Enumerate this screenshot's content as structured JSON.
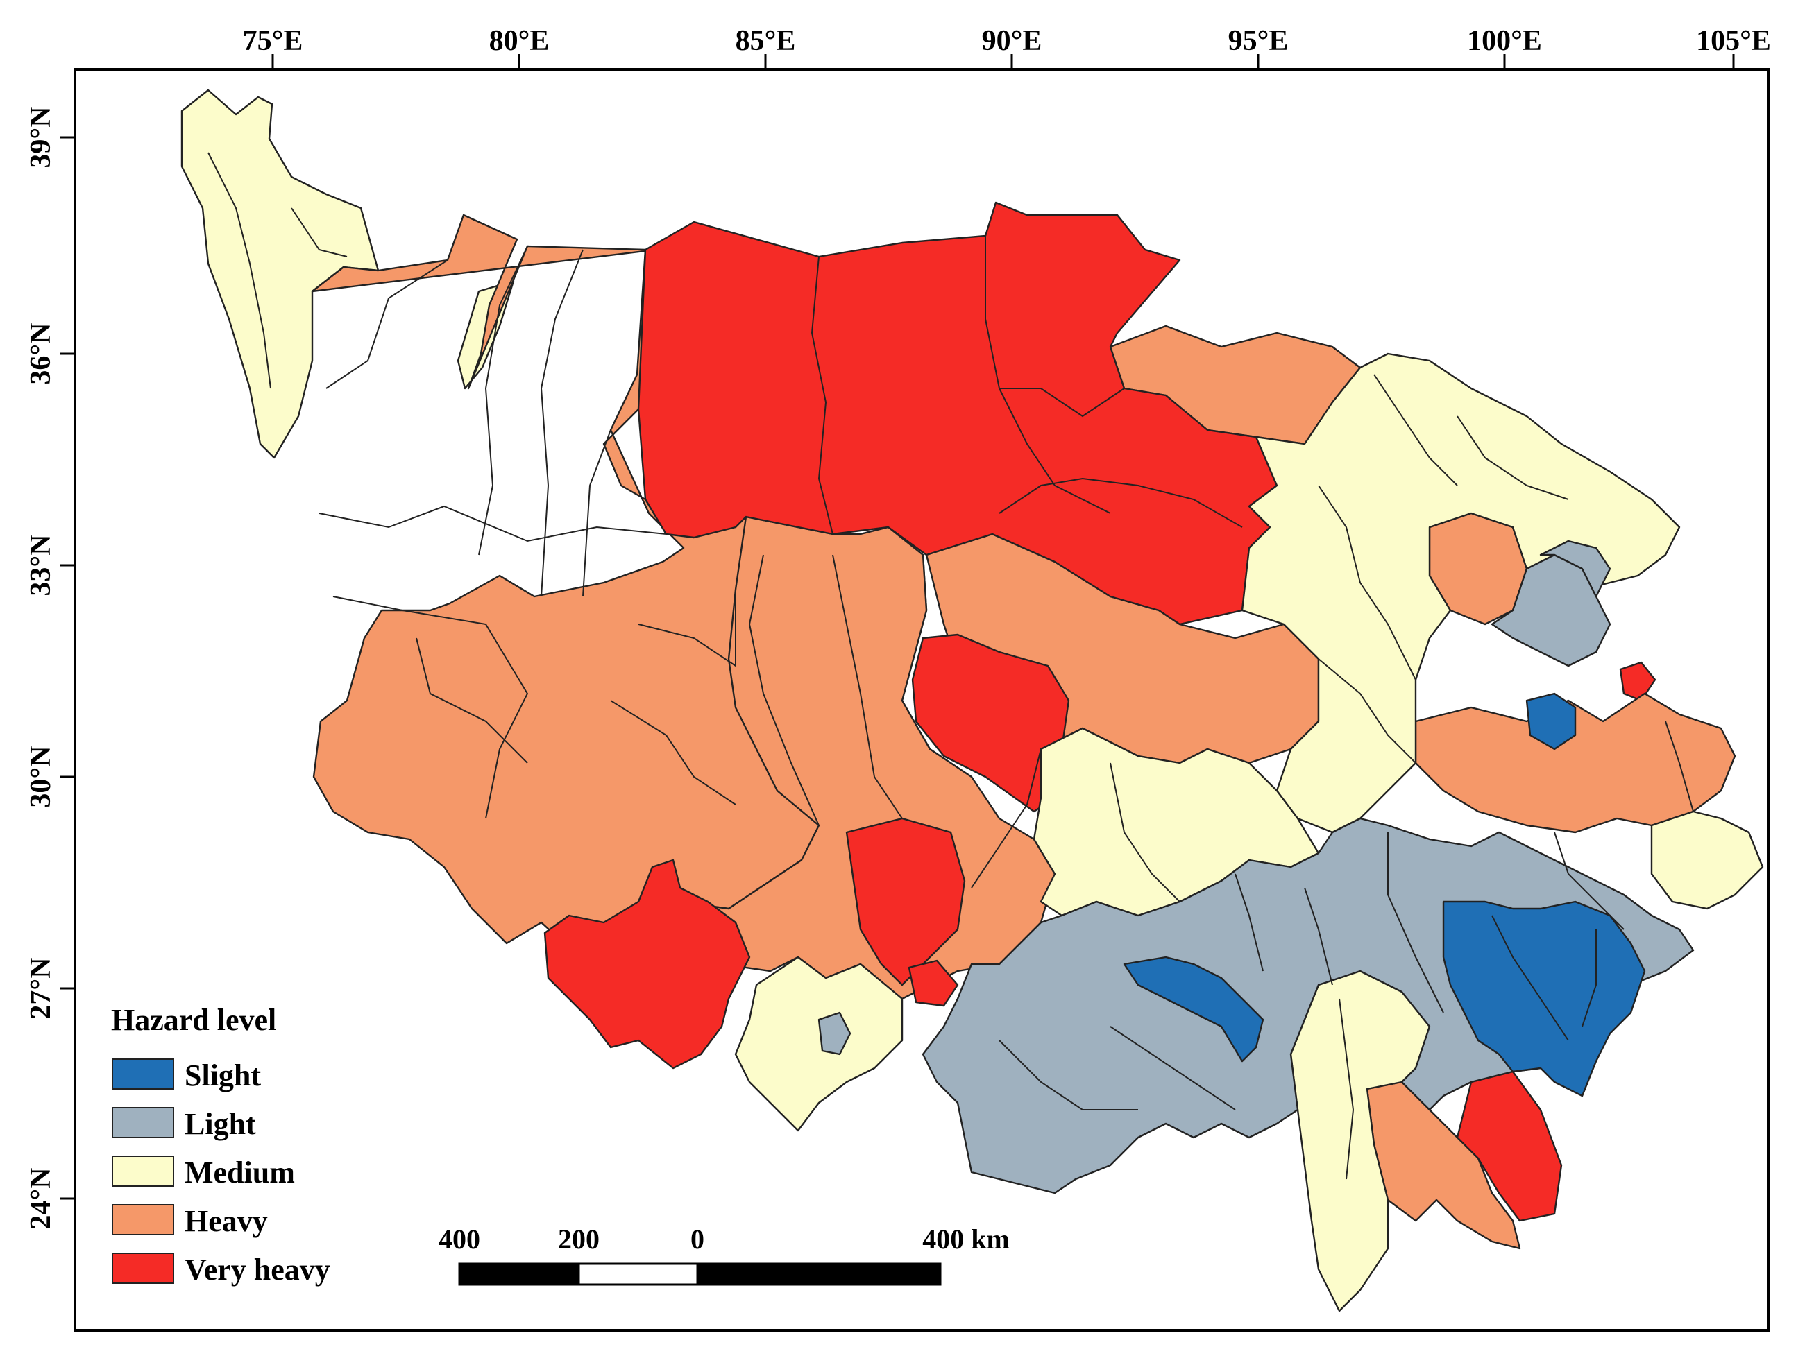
{
  "map": {
    "longitude_labels": [
      "75°E",
      "80°E",
      "85°E",
      "90°E",
      "95°E",
      "100°E",
      "105°E"
    ],
    "latitude_labels": [
      "39°N",
      "36°N",
      "33°N",
      "30°N",
      "27°N",
      "24°N"
    ],
    "colors": {
      "slight": "#1f6fb5",
      "light": "#9fb1bf",
      "medium": "#fcfccb",
      "heavy": "#f59869",
      "very_heavy": "#f52b26"
    },
    "legend": {
      "title": "Hazard level",
      "items": [
        {
          "label": "Slight",
          "color": "#1f6fb5"
        },
        {
          "label": "Light",
          "color": "#9fb1bf"
        },
        {
          "label": "Medium",
          "color": "#fcfccb"
        },
        {
          "label": "Heavy",
          "color": "#f59869"
        },
        {
          "label": "Very heavy",
          "color": "#f52b26"
        }
      ]
    },
    "scale_bar": {
      "labels": [
        "400",
        "200",
        "0",
        "400 km"
      ]
    }
  }
}
